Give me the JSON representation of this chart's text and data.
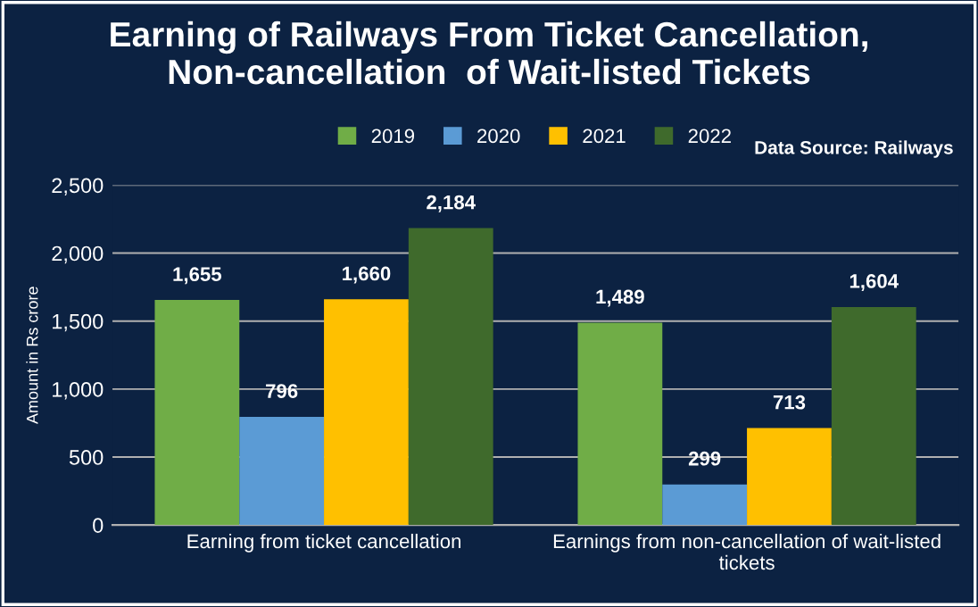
{
  "chart_data": {
    "type": "bar",
    "title": "Earning of Railways From Ticket Cancellation,\nNon-cancellation  of Wait-listed Tickets",
    "ylabel": "Amount in Rs crore",
    "categories": [
      "Earning from ticket cancellation",
      "Earnings from non-cancellation of wait-listed\ntickets"
    ],
    "series": [
      {
        "name": "2019",
        "color": "#70ad47",
        "values": [
          1655,
          1489
        ],
        "value_labels": [
          "1,655",
          "1,489"
        ]
      },
      {
        "name": "2020",
        "color": "#5b9bd5",
        "values": [
          796,
          299
        ],
        "value_labels": [
          "796",
          "299"
        ]
      },
      {
        "name": "2021",
        "color": "#ffc000",
        "values": [
          1660,
          713
        ],
        "value_labels": [
          "1,660",
          "713"
        ]
      },
      {
        "name": "2022",
        "color": "#3f6a2c",
        "values": [
          2184,
          1604
        ],
        "value_labels": [
          "2,184",
          "1,604"
        ]
      }
    ],
    "ylim": [
      0,
      2500
    ],
    "yticks": [
      0,
      500,
      {
        "value": 1000,
        "label": "1,000"
      },
      {
        "value": 1500,
        "label": "1,500"
      },
      {
        "value": 2000,
        "label": "2,000"
      },
      {
        "value": 2500,
        "label": "2,500"
      }
    ],
    "grid": "y",
    "legend": "top",
    "annotations": [
      "Data Source: Railways"
    ]
  }
}
